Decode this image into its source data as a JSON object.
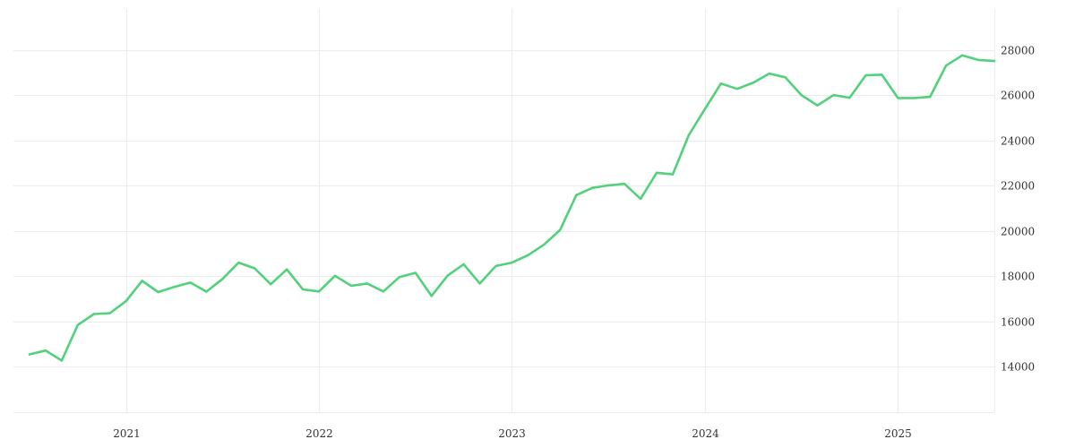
{
  "chart_data": {
    "type": "line",
    "title": "",
    "xlabel": "",
    "ylabel": "",
    "grid": true,
    "x_ticks": [
      "2021",
      "2022",
      "2023",
      "2024",
      "2025"
    ],
    "y_ticks": [
      14000,
      16000,
      18000,
      20000,
      22000,
      24000,
      26000,
      28000
    ],
    "xlim": [
      "2020-06",
      "2025-07"
    ],
    "ylim": [
      12000,
      29800
    ],
    "series": [
      {
        "color": "#52d17b",
        "x": [
          "2020-07",
          "2020-08",
          "2020-09",
          "2020-10",
          "2020-11",
          "2020-12",
          "2021-01",
          "2021-02",
          "2021-03",
          "2021-04",
          "2021-05",
          "2021-06",
          "2021-07",
          "2021-08",
          "2021-09",
          "2021-10",
          "2021-11",
          "2021-12",
          "2022-01",
          "2022-02",
          "2022-03",
          "2022-04",
          "2022-05",
          "2022-06",
          "2022-07",
          "2022-08",
          "2022-09",
          "2022-10",
          "2022-11",
          "2022-12",
          "2023-01",
          "2023-02",
          "2023-03",
          "2023-04",
          "2023-05",
          "2023-06",
          "2023-07",
          "2023-08",
          "2023-09",
          "2023-10",
          "2023-11",
          "2023-12",
          "2024-01",
          "2024-02",
          "2024-03",
          "2024-04",
          "2024-05",
          "2024-06",
          "2024-07",
          "2024-08",
          "2024-09",
          "2024-10",
          "2024-11",
          "2024-12",
          "2025-01",
          "2025-02",
          "2025-03",
          "2025-04",
          "2025-05",
          "2025-06",
          "2025-07"
        ],
        "values": [
          14550,
          14720,
          14280,
          15850,
          16330,
          16370,
          16900,
          17800,
          17300,
          17530,
          17720,
          17320,
          17880,
          18600,
          18350,
          17650,
          18300,
          17420,
          17330,
          18020,
          17580,
          17680,
          17330,
          17960,
          18150,
          17130,
          18030,
          18530,
          17680,
          18450,
          18600,
          18930,
          19400,
          20050,
          21580,
          21900,
          22010,
          22080,
          21420,
          22570,
          22500,
          24230,
          25380,
          26510,
          26270,
          26540,
          26950,
          26780,
          26000,
          25540,
          26000,
          25880,
          26870,
          26900,
          25870,
          25870,
          25920,
          27300,
          27750,
          27550,
          27500
        ]
      }
    ]
  }
}
